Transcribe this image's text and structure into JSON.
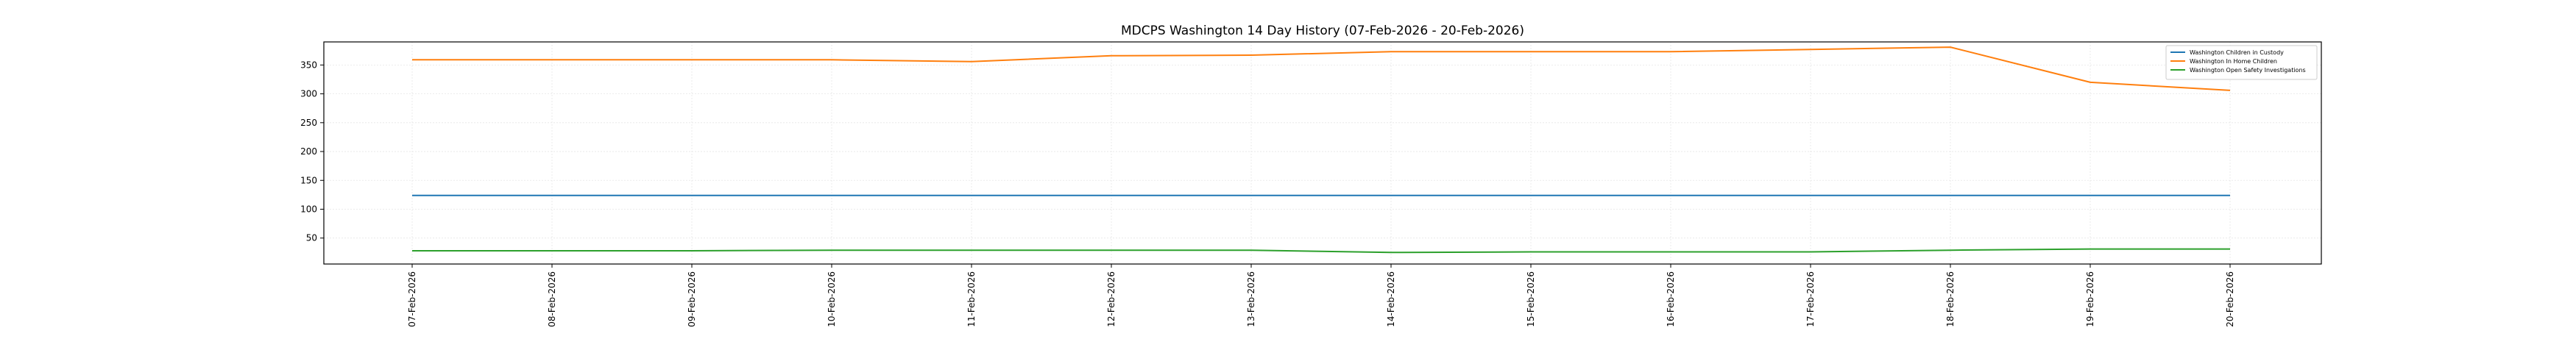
{
  "chart_data": {
    "type": "line",
    "title": "MDCPS Washington 14 Day History (07-Feb-2026 - 20-Feb-2026)",
    "xlabel": "",
    "ylabel": "",
    "categories": [
      "07-Feb-2026",
      "08-Feb-2026",
      "09-Feb-2026",
      "10-Feb-2026",
      "11-Feb-2026",
      "12-Feb-2026",
      "13-Feb-2026",
      "14-Feb-2026",
      "15-Feb-2026",
      "16-Feb-2026",
      "17-Feb-2026",
      "18-Feb-2026",
      "19-Feb-2026",
      "20-Feb-2026"
    ],
    "ylim": [
      5,
      390
    ],
    "yticks": [
      50,
      100,
      150,
      200,
      250,
      300,
      350
    ],
    "grid": true,
    "legend_position": "top-right",
    "series": [
      {
        "name": "Washington Children in Custody",
        "color": "#1f77b4",
        "values": [
          124,
          124,
          124,
          124,
          124,
          124,
          124,
          124,
          124,
          124,
          124,
          124,
          124,
          124
        ]
      },
      {
        "name": "Washington In Home Children",
        "color": "#ff7f0e",
        "values": [
          359,
          359,
          359,
          359,
          356,
          366,
          367,
          373,
          373,
          373,
          377,
          381,
          320,
          306
        ]
      },
      {
        "name": "Washington Open Safety Investigations",
        "color": "#2ca02c",
        "values": [
          28,
          28,
          28,
          29,
          29,
          29,
          29,
          25,
          26,
          26,
          26,
          29,
          31,
          31
        ]
      }
    ]
  }
}
